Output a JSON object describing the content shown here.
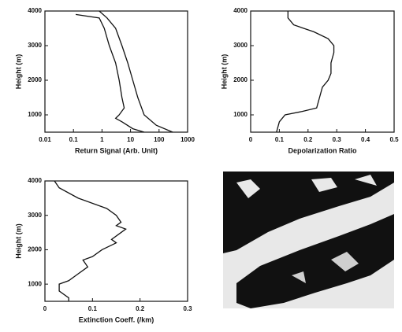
{
  "chart_data": [
    {
      "type": "line",
      "xlabel": "Return Signal (Arb. Unit)",
      "ylabel": "Height (m)",
      "xscale": "log",
      "xlim": [
        0.01,
        1000
      ],
      "xticks": [
        0.01,
        0.1,
        1,
        10,
        100,
        1000
      ],
      "ylim": [
        500,
        4000
      ],
      "yticks": [
        1000,
        2000,
        3000,
        4000
      ],
      "color": "#111111",
      "series": [
        {
          "x": [
            0.12,
            0.8,
            1.2,
            1.8,
            3,
            4,
            5,
            6,
            4,
            3,
            5,
            12,
            30
          ],
          "y": [
            3900,
            3800,
            3500,
            3000,
            2500,
            2000,
            1500,
            1200,
            1000,
            900,
            800,
            600,
            500
          ]
        },
        {
          "x": [
            0.8,
            1.5,
            3,
            5,
            8,
            12,
            18,
            30,
            80,
            300
          ],
          "y": [
            4000,
            3800,
            3500,
            3000,
            2500,
            2000,
            1500,
            1000,
            700,
            500
          ]
        }
      ]
    },
    {
      "type": "line",
      "xlabel": "Depolarization Ratio",
      "ylabel": "Height (m)",
      "xscale": "linear",
      "xlim": [
        0,
        0.5
      ],
      "xticks": [
        0,
        0.1,
        0.2,
        0.3,
        0.4,
        0.5
      ],
      "ylim": [
        500,
        4000
      ],
      "yticks": [
        1000,
        2000,
        3000,
        4000
      ],
      "color": "#111111",
      "series": [
        {
          "x": [
            0.13,
            0.13,
            0.15,
            0.22,
            0.27,
            0.29,
            0.29,
            0.28,
            0.28,
            0.27,
            0.25,
            0.24,
            0.23,
            0.18,
            0.12,
            0.1,
            0.09
          ],
          "y": [
            4000,
            3800,
            3600,
            3400,
            3200,
            3000,
            2800,
            2500,
            2200,
            2000,
            1800,
            1500,
            1200,
            1100,
            1000,
            800,
            500
          ]
        }
      ]
    },
    {
      "type": "line",
      "xlabel": "Extinction Coeff. (/km)",
      "ylabel": "Height (m)",
      "xscale": "linear",
      "xlim": [
        0,
        0.3
      ],
      "xticks": [
        0,
        0.1,
        0.2,
        0.3
      ],
      "ylim": [
        500,
        4000
      ],
      "yticks": [
        1000,
        2000,
        3000,
        4000
      ],
      "color": "#111111",
      "series": [
        {
          "x": [
            0.02,
            0.03,
            0.07,
            0.13,
            0.15,
            0.16,
            0.15,
            0.17,
            0.16,
            0.14,
            0.15,
            0.12,
            0.1,
            0.08,
            0.09,
            0.07,
            0.05,
            0.03,
            0.03,
            0.05,
            0.05
          ],
          "y": [
            4000,
            3800,
            3500,
            3200,
            3000,
            2800,
            2700,
            2600,
            2500,
            2300,
            2200,
            2000,
            1800,
            1700,
            1500,
            1300,
            1100,
            1000,
            800,
            600,
            500
          ]
        }
      ]
    }
  ]
}
